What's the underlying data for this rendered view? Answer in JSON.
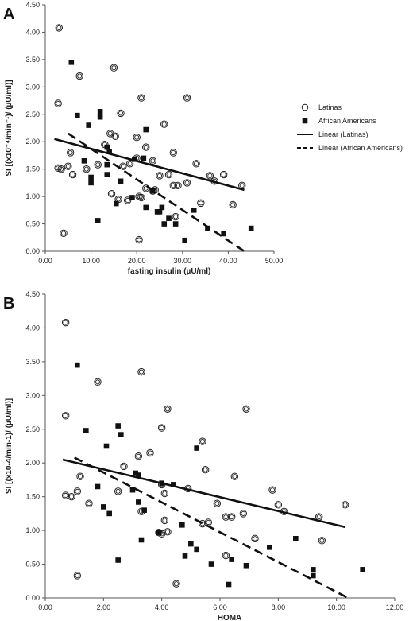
{
  "chart_data": [
    {
      "type": "scatter",
      "panel": "A",
      "xlabel": "fasting insulin (µU/ml)",
      "ylabel": "SI [(x10⁻⁴/min⁻¹)/ (µU/ml)]",
      "xlim": [
        0,
        50
      ],
      "ylim": [
        0,
        4.5
      ],
      "x_ticks": [
        "0.00",
        "10.00",
        "20.00",
        "30.00",
        "40.00",
        "50.00"
      ],
      "y_ticks": [
        "0.00",
        "0.50",
        "1.00",
        "1.50",
        "2.00",
        "2.50",
        "3.00",
        "3.50",
        "4.00",
        "4.50"
      ],
      "legend": {
        "position": "right"
      },
      "series": [
        {
          "name": "Latinas",
          "marker": "open-circle",
          "points": [
            [
              3.0,
              4.08
            ],
            [
              2.8,
              2.7
            ],
            [
              7.5,
              3.2
            ],
            [
              15.0,
              3.35
            ],
            [
              21.0,
              2.8
            ],
            [
              31.0,
              2.8
            ],
            [
              16.5,
              2.52
            ],
            [
              26.0,
              2.32
            ],
            [
              14.2,
              2.15
            ],
            [
              15.3,
              2.1
            ],
            [
              20.0,
              2.08
            ],
            [
              13.0,
              1.95
            ],
            [
              22.0,
              1.9
            ],
            [
              5.5,
              1.8
            ],
            [
              28.0,
              1.8
            ],
            [
              20.0,
              1.7
            ],
            [
              23.5,
              1.65
            ],
            [
              18.5,
              1.6
            ],
            [
              11.5,
              1.58
            ],
            [
              17.0,
              1.55
            ],
            [
              33.0,
              1.6
            ],
            [
              5.0,
              1.55
            ],
            [
              2.8,
              1.52
            ],
            [
              3.5,
              1.5
            ],
            [
              9.0,
              1.5
            ],
            [
              36.0,
              1.38
            ],
            [
              39.0,
              1.4
            ],
            [
              25.0,
              1.38
            ],
            [
              27.0,
              1.4
            ],
            [
              6.0,
              1.4
            ],
            [
              37.0,
              1.28
            ],
            [
              31.0,
              1.25
            ],
            [
              28.0,
              1.2
            ],
            [
              29.0,
              1.2
            ],
            [
              22.0,
              1.15
            ],
            [
              43.0,
              1.2
            ],
            [
              23.5,
              1.1
            ],
            [
              24.0,
              1.12
            ],
            [
              14.5,
              1.05
            ],
            [
              20.5,
              1.0
            ],
            [
              21.0,
              0.98
            ],
            [
              16.0,
              0.95
            ],
            [
              18.0,
              0.93
            ],
            [
              34.0,
              0.88
            ],
            [
              41.0,
              0.85
            ],
            [
              28.5,
              0.63
            ],
            [
              4.0,
              0.33
            ],
            [
              20.5,
              0.21
            ]
          ]
        },
        {
          "name": "African Americans",
          "marker": "filled-square",
          "points": [
            [
              5.7,
              3.45
            ],
            [
              7.0,
              2.48
            ],
            [
              12.0,
              2.55
            ],
            [
              12.0,
              2.45
            ],
            [
              9.5,
              2.3
            ],
            [
              22.0,
              2.22
            ],
            [
              13.5,
              1.9
            ],
            [
              14.0,
              1.82
            ],
            [
              21.5,
              1.7
            ],
            [
              8.5,
              1.65
            ],
            [
              19.5,
              1.68
            ],
            [
              13.5,
              1.58
            ],
            [
              10.0,
              1.35
            ],
            [
              10.0,
              1.25
            ],
            [
              13.5,
              1.4
            ],
            [
              16.5,
              1.28
            ],
            [
              23.5,
              1.1
            ],
            [
              19.0,
              0.98
            ],
            [
              15.5,
              0.87
            ],
            [
              22.0,
              0.8
            ],
            [
              25.0,
              0.72
            ],
            [
              25.5,
              0.8
            ],
            [
              24.5,
              0.72
            ],
            [
              27.0,
              0.6
            ],
            [
              32.5,
              0.75
            ],
            [
              26.0,
              0.5
            ],
            [
              28.5,
              0.5
            ],
            [
              35.5,
              0.42
            ],
            [
              39.0,
              0.32
            ],
            [
              45.0,
              0.42
            ],
            [
              11.5,
              0.56
            ],
            [
              30.5,
              0.2
            ]
          ]
        },
        {
          "name": "Linear (Latinas)",
          "line_style": "solid",
          "points": [
            [
              2.0,
              2.05
            ],
            [
              43.5,
              1.12
            ]
          ]
        },
        {
          "name": "Linear (African Americans)",
          "line_style": "dashed",
          "points": [
            [
              5.0,
              2.15
            ],
            [
              43.5,
              0.0
            ]
          ]
        }
      ]
    },
    {
      "type": "scatter",
      "panel": "B",
      "xlabel": "HOMA",
      "ylabel": "SI [(x10-4/min-1)/ (µU/ml)]",
      "xlim": [
        0,
        12
      ],
      "ylim": [
        0,
        4.5
      ],
      "x_ticks": [
        "0.00",
        "2.00",
        "4.00",
        "6.00",
        "8.00",
        "10.00",
        "12.00"
      ],
      "y_ticks": [
        "0.00",
        "0.50",
        "1.00",
        "1.50",
        "2.00",
        "2.50",
        "3.00",
        "3.50",
        "4.00",
        "4.50"
      ],
      "series": [
        {
          "name": "Latinas",
          "marker": "open-circle",
          "points": [
            [
              0.7,
              4.08
            ],
            [
              0.7,
              2.7
            ],
            [
              1.8,
              3.2
            ],
            [
              3.3,
              3.35
            ],
            [
              4.2,
              2.8
            ],
            [
              6.9,
              2.8
            ],
            [
              4.0,
              2.52
            ],
            [
              5.4,
              2.32
            ],
            [
              3.6,
              2.15
            ],
            [
              3.2,
              2.1
            ],
            [
              5.5,
              1.9
            ],
            [
              2.7,
              1.95
            ],
            [
              1.2,
              1.8
            ],
            [
              4.0,
              1.68
            ],
            [
              4.9,
              1.62
            ],
            [
              6.5,
              1.8
            ],
            [
              0.7,
              1.52
            ],
            [
              0.9,
              1.5
            ],
            [
              1.1,
              1.58
            ],
            [
              2.5,
              1.58
            ],
            [
              4.1,
              1.55
            ],
            [
              7.8,
              1.6
            ],
            [
              10.3,
              1.38
            ],
            [
              8.0,
              1.38
            ],
            [
              1.5,
              1.4
            ],
            [
              5.9,
              1.4
            ],
            [
              3.3,
              1.28
            ],
            [
              8.2,
              1.28
            ],
            [
              6.8,
              1.25
            ],
            [
              6.2,
              1.2
            ],
            [
              6.4,
              1.2
            ],
            [
              5.6,
              1.12
            ],
            [
              5.4,
              1.1
            ],
            [
              9.4,
              1.2
            ],
            [
              4.1,
              1.15
            ],
            [
              3.9,
              0.97
            ],
            [
              4.0,
              0.95
            ],
            [
              7.2,
              0.88
            ],
            [
              9.5,
              0.85
            ],
            [
              4.2,
              0.98
            ],
            [
              6.2,
              0.63
            ],
            [
              1.1,
              0.33
            ],
            [
              4.5,
              0.21
            ]
          ]
        },
        {
          "name": "African Americans",
          "marker": "filled-square",
          "points": [
            [
              1.1,
              3.45
            ],
            [
              1.4,
              2.48
            ],
            [
              2.5,
              2.55
            ],
            [
              2.6,
              2.42
            ],
            [
              2.1,
              2.25
            ],
            [
              5.2,
              2.22
            ],
            [
              3.1,
              1.85
            ],
            [
              3.2,
              1.82
            ],
            [
              4.0,
              1.7
            ],
            [
              1.8,
              1.65
            ],
            [
              4.4,
              1.68
            ],
            [
              3.0,
              1.6
            ],
            [
              2.0,
              1.35
            ],
            [
              2.2,
              1.25
            ],
            [
              3.2,
              1.42
            ],
            [
              3.4,
              1.3
            ],
            [
              4.7,
              1.08
            ],
            [
              3.9,
              0.97
            ],
            [
              3.3,
              0.86
            ],
            [
              5.0,
              0.8
            ],
            [
              5.2,
              0.72
            ],
            [
              7.7,
              0.75
            ],
            [
              8.6,
              0.88
            ],
            [
              5.7,
              0.5
            ],
            [
              6.4,
              0.57
            ],
            [
              6.9,
              0.48
            ],
            [
              9.2,
              0.42
            ],
            [
              9.2,
              0.33
            ],
            [
              10.9,
              0.42
            ],
            [
              2.5,
              0.56
            ],
            [
              6.3,
              0.2
            ],
            [
              4.8,
              0.62
            ]
          ]
        },
        {
          "name": "",
          "line_style": "solid",
          "points": [
            [
              0.6,
              2.05
            ],
            [
              10.3,
              1.05
            ]
          ]
        },
        {
          "name": "",
          "line_style": "dashed",
          "points": [
            [
              1.0,
              2.08
            ],
            [
              10.4,
              0.0
            ]
          ]
        }
      ]
    }
  ]
}
